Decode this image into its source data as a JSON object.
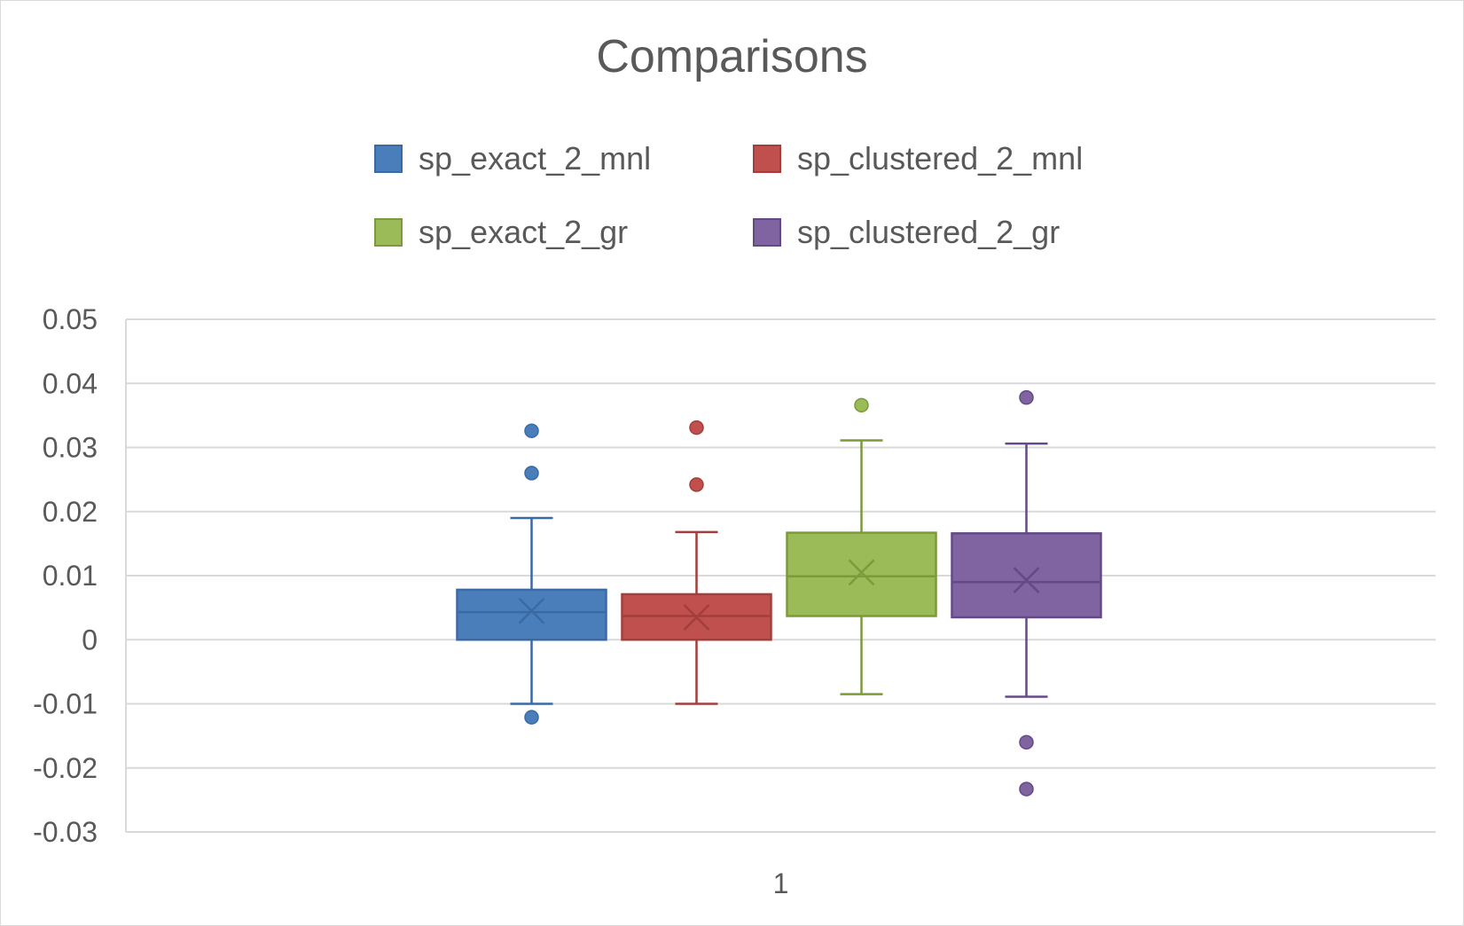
{
  "chart_data": {
    "type": "box",
    "title": "Comparisons",
    "categories": [
      "1"
    ],
    "legend_position": "top",
    "grid": true,
    "ylim": [
      -0.03,
      0.05
    ],
    "yticks": [
      "0.05",
      "0.04",
      "0.03",
      "0.02",
      "0.01",
      "0",
      "-0.01",
      "-0.02",
      "-0.03"
    ],
    "series": [
      {
        "name": "sp_exact_2_mnl",
        "color": "#4a7ebb",
        "stroke": "#3a6aa4",
        "min": -0.01,
        "q1": 0.0,
        "median": 0.0043,
        "q3": 0.0078,
        "max": 0.019,
        "mean": 0.0045,
        "outliers": [
          0.0326,
          0.026,
          -0.0121
        ]
      },
      {
        "name": "sp_clustered_2_mnl",
        "color": "#c0504d",
        "stroke": "#a23e3b",
        "min": -0.01,
        "q1": 0.0,
        "median": 0.0037,
        "q3": 0.0071,
        "max": 0.0168,
        "mean": 0.0035,
        "outliers": [
          0.0331,
          0.0242
        ]
      },
      {
        "name": "sp_exact_2_gr",
        "color": "#9bbb59",
        "stroke": "#7a9a3c",
        "min": -0.0085,
        "q1": 0.0037,
        "median": 0.0099,
        "q3": 0.0167,
        "max": 0.0311,
        "mean": 0.0105,
        "outliers": [
          0.0366
        ]
      },
      {
        "name": "sp_clustered_2_gr",
        "color": "#8064a2",
        "stroke": "#634a85",
        "min": -0.0089,
        "q1": 0.0035,
        "median": 0.009,
        "q3": 0.0166,
        "max": 0.0306,
        "mean": 0.0093,
        "outliers": [
          0.0378,
          -0.016,
          -0.0233
        ]
      }
    ]
  }
}
